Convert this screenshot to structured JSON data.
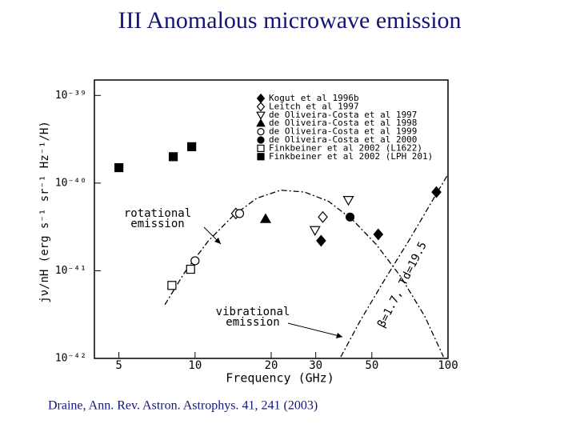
{
  "slide": {
    "title": "III  Anomalous microwave emission",
    "caption": "Draine, Ann. Rev. Astron. Astrophys. 41, 241 (2003)"
  },
  "chart_data": {
    "type": "scatter",
    "x_label": "Frequency (GHz)",
    "y_label": "jν/nH (erg s⁻¹ sr⁻¹ Hz⁻¹/H)",
    "log_x": true,
    "log_y": true,
    "xlim": [
      4,
      100
    ],
    "ylim": [
      1e-42,
      1.5e-39
    ],
    "xticks": [
      5,
      10,
      20,
      30,
      50,
      100
    ],
    "yticks": [
      {
        "value": 1e-39,
        "label": "10⁻³⁹"
      },
      {
        "value": 1e-40,
        "label": "10⁻⁴⁰"
      },
      {
        "value": 1e-41,
        "label": "10⁻⁴¹"
      },
      {
        "value": 1e-42,
        "label": "10⁻⁴²"
      }
    ],
    "legend": "top-right",
    "series": [
      {
        "name": "Kogut et al 1996b",
        "color": "#000000",
        "marker": "diamond",
        "filled": true,
        "x": [
          31.5,
          53,
          90
        ],
        "values": [
          2.2e-41,
          2.6e-41,
          7.9e-41
        ]
      },
      {
        "name": "Leitch et al 1997",
        "color": "#000000",
        "marker": "diamond",
        "filled": false,
        "x": [
          14.5,
          32
        ],
        "values": [
          4.5e-41,
          4.1e-41
        ]
      },
      {
        "name": "de Oliveira-Costa et al 1997",
        "color": "#000000",
        "marker": "triangle-down",
        "filled": false,
        "x": [
          29.8,
          40.4
        ],
        "values": [
          2.9e-41,
          6.4e-41
        ]
      },
      {
        "name": "de Oliveira-Costa et al 1998",
        "color": "#000000",
        "marker": "triangle-up",
        "filled": true,
        "x": [
          19
        ],
        "values": [
          3.9e-41
        ]
      },
      {
        "name": "de Oliveira-Costa et al 1999",
        "color": "#000000",
        "marker": "circle",
        "filled": false,
        "x": [
          10,
          15
        ],
        "values": [
          1.3e-41,
          4.5e-41
        ]
      },
      {
        "name": "de Oliveira-Costa et al 2000",
        "color": "#000000",
        "marker": "circle",
        "filled": true,
        "x": [
          41
        ],
        "values": [
          4.1e-41
        ]
      },
      {
        "name": "Finkbeiner et al 2002 (L1622)",
        "color": "#000000",
        "marker": "square",
        "filled": false,
        "x": [
          8.1,
          9.6
        ],
        "values": [
          6.8e-42,
          1.04e-41
        ]
      },
      {
        "name": "Finkbeiner et al 2002 (LPH 201)",
        "color": "#000000",
        "marker": "square",
        "filled": true,
        "x": [
          5,
          8.2,
          9.7
        ],
        "values": [
          1.5e-40,
          2e-40,
          2.6e-40
        ]
      }
    ],
    "curves": [
      {
        "label_lines": [
          "rotational",
          "emission"
        ],
        "color": "#000000",
        "x": [
          7.6,
          9.1,
          11.3,
          14.1,
          17.5,
          21.8,
          27.1,
          33.7,
          42,
          52,
          65,
          81,
          96
        ],
        "values": [
          4.1e-42,
          9.6e-42,
          2.2e-41,
          4.2e-41,
          6.7e-41,
          8.3e-41,
          7.9e-41,
          6.2e-41,
          3.8e-41,
          2e-41,
          8.6e-42,
          3e-42,
          1.04e-42
        ]
      },
      {
        "label_lines": [
          "vibrational",
          "emission"
        ],
        "color": "#000000",
        "x": [
          37.7,
          45,
          56,
          70,
          87,
          99
        ],
        "values": [
          1.04e-42,
          2.7e-42,
          7.8e-42,
          2.2e-41,
          6.4e-41,
          1.2e-40
        ]
      }
    ],
    "annotation": "β=1.7, Td=19.5"
  }
}
